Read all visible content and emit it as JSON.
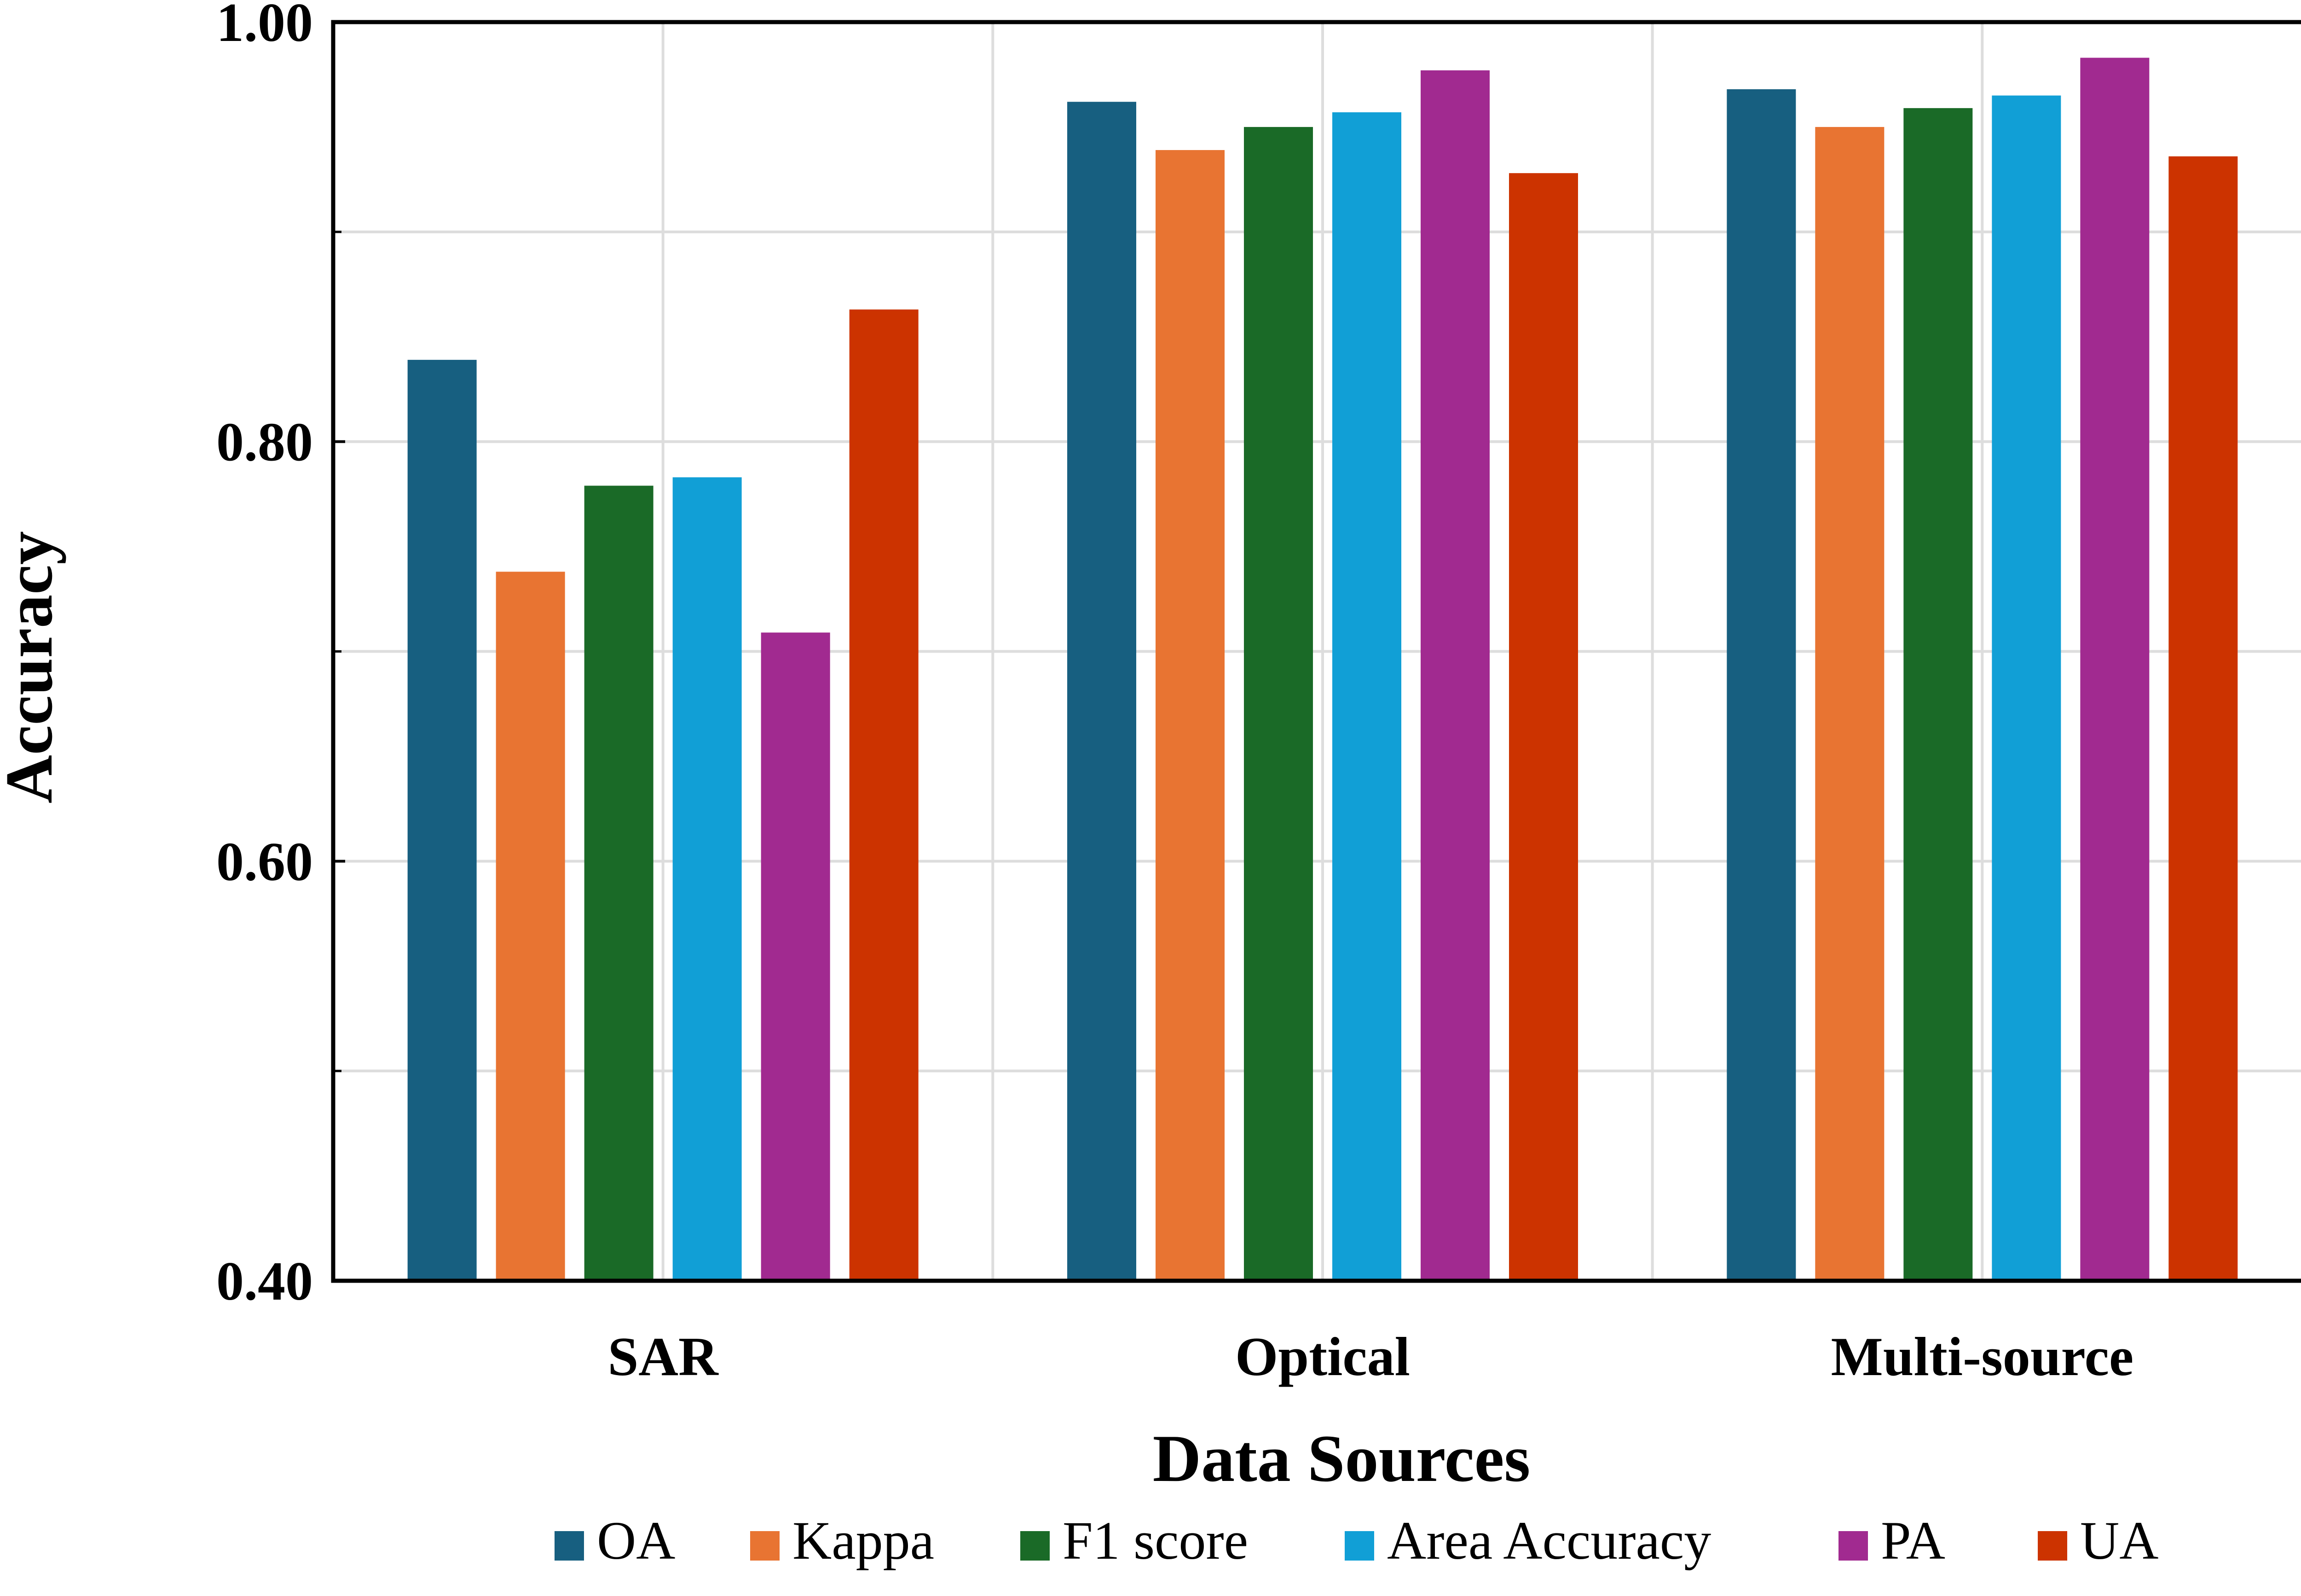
{
  "chart_data": {
    "type": "bar",
    "title": "",
    "xlabel": "Data Sources",
    "ylabel": "Accuracy",
    "ylim": [
      0.4,
      1.0
    ],
    "yticks": [
      0.4,
      0.6,
      0.8,
      1.0
    ],
    "ytick_labels": [
      "0.40",
      "0.60",
      "0.80",
      "1.00"
    ],
    "minor_yticks": [
      0.5,
      0.7,
      0.9
    ],
    "grid": true,
    "legend_position": "bottom",
    "categories": [
      "SAR",
      "Optical",
      "Multi-source"
    ],
    "series": [
      {
        "name": "OA",
        "color": "#175f80",
        "values": [
          0.839,
          0.962,
          0.968
        ]
      },
      {
        "name": "Kappa",
        "color": "#e87432",
        "values": [
          0.738,
          0.939,
          0.95
        ]
      },
      {
        "name": "F1 score",
        "color": "#1a6a27",
        "values": [
          0.779,
          0.95,
          0.959
        ]
      },
      {
        "name": "Area Accuracy",
        "color": "#119fd6",
        "values": [
          0.783,
          0.957,
          0.965
        ]
      },
      {
        "name": "PA",
        "color": "#a12a90",
        "values": [
          0.709,
          0.977,
          0.983
        ]
      },
      {
        "name": "UA",
        "color": "#cc3300",
        "values": [
          0.863,
          0.928,
          0.936
        ]
      }
    ]
  }
}
